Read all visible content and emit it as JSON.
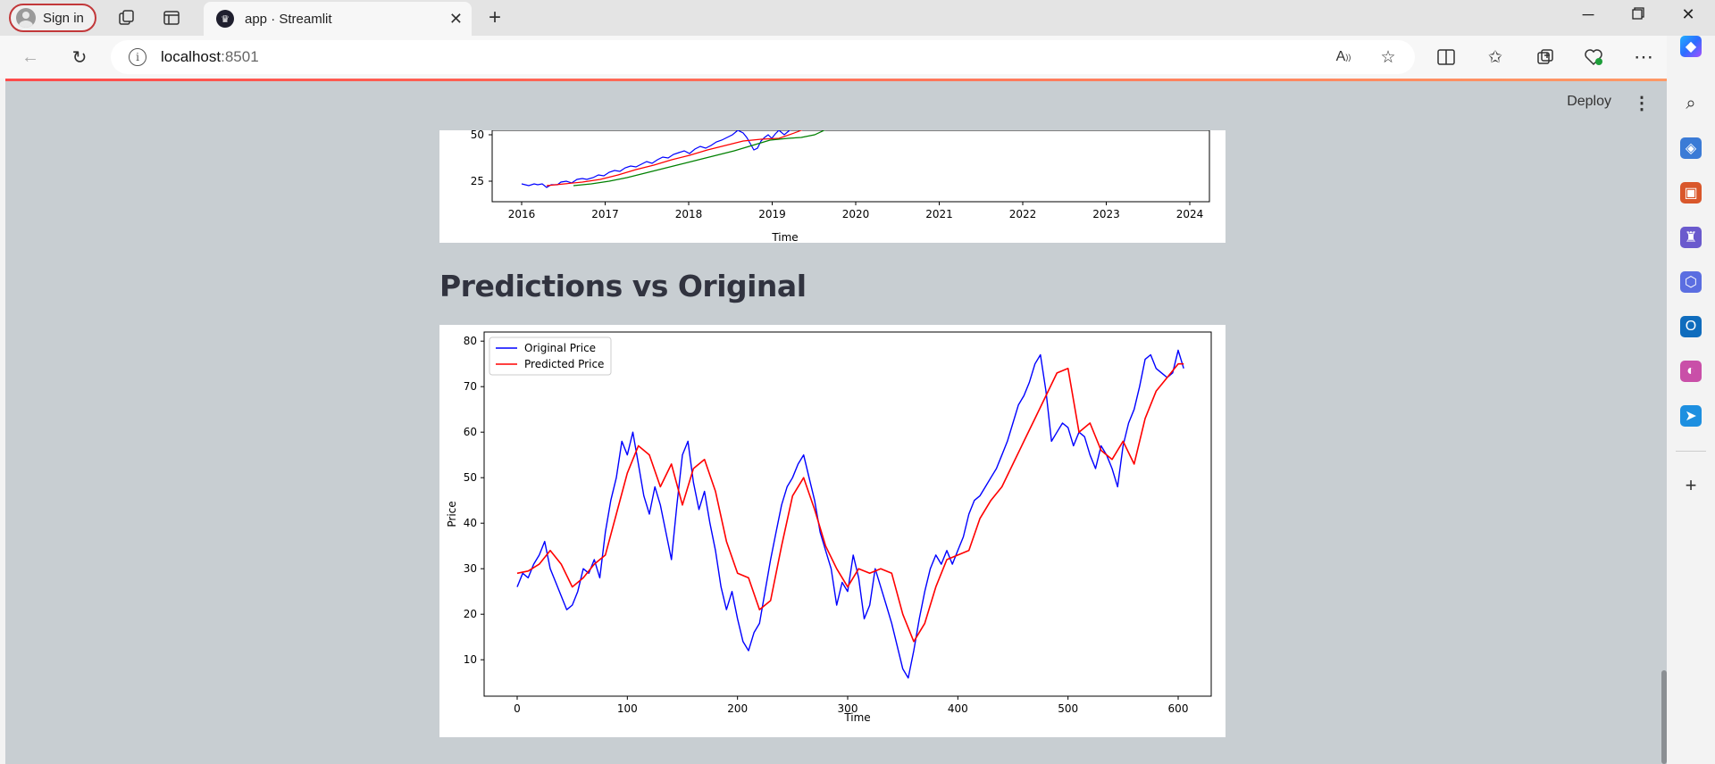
{
  "browser": {
    "signin_label": "Sign in",
    "tab_title": "app · Streamlit",
    "url_host": "localhost",
    "url_port": ":8501"
  },
  "streamlit": {
    "deploy_label": "Deploy",
    "section_heading": "Predictions vs Original"
  },
  "top_chart": {
    "type": "line",
    "x_tick_labels": [
      "2016",
      "2017",
      "2018",
      "2019",
      "2020",
      "2021",
      "2022",
      "2023",
      "2024"
    ],
    "y_tick_labels": [
      "50",
      "25"
    ],
    "xlabel": "Time",
    "series_colors": [
      "#0000ff",
      "#ff0000",
      "#008000"
    ]
  },
  "chart_data": {
    "type": "line",
    "xlabel": "Time",
    "ylabel": "Price",
    "xlim": [
      -30,
      630
    ],
    "ylim": [
      2,
      82
    ],
    "x_ticks": [
      0,
      100,
      200,
      300,
      400,
      500,
      600
    ],
    "y_ticks": [
      10,
      20,
      30,
      40,
      50,
      60,
      70,
      80
    ],
    "legend_position": "top-left",
    "series": [
      {
        "name": "Original Price",
        "color": "#0000ff",
        "x": [
          0,
          5,
          10,
          15,
          20,
          25,
          30,
          35,
          40,
          45,
          50,
          55,
          60,
          65,
          70,
          75,
          80,
          85,
          90,
          95,
          100,
          105,
          110,
          115,
          120,
          125,
          130,
          135,
          140,
          145,
          150,
          155,
          160,
          165,
          170,
          175,
          180,
          185,
          190,
          195,
          200,
          205,
          210,
          215,
          220,
          225,
          230,
          235,
          240,
          245,
          250,
          255,
          260,
          265,
          270,
          275,
          280,
          285,
          290,
          295,
          300,
          305,
          310,
          315,
          320,
          325,
          330,
          335,
          340,
          345,
          350,
          355,
          360,
          365,
          370,
          375,
          380,
          385,
          390,
          395,
          400,
          405,
          410,
          415,
          420,
          425,
          430,
          435,
          440,
          445,
          450,
          455,
          460,
          465,
          470,
          475,
          480,
          485,
          490,
          495,
          500,
          505,
          510,
          515,
          520,
          525,
          530,
          535,
          540,
          545,
          550,
          555,
          560,
          565,
          570,
          575,
          580,
          585,
          590,
          595,
          600,
          605
        ],
        "values": [
          26,
          29,
          28,
          31,
          33,
          36,
          30,
          27,
          24,
          21,
          22,
          25,
          30,
          29,
          32,
          28,
          38,
          45,
          50,
          58,
          55,
          60,
          53,
          46,
          42,
          48,
          44,
          38,
          32,
          44,
          55,
          58,
          49,
          43,
          47,
          40,
          34,
          26,
          21,
          25,
          19,
          14,
          12,
          16,
          18,
          25,
          32,
          38,
          44,
          48,
          50,
          53,
          55,
          50,
          45,
          38,
          34,
          30,
          22,
          27,
          25,
          33,
          28,
          19,
          22,
          30,
          26,
          22,
          18,
          13,
          8,
          6,
          12,
          19,
          25,
          30,
          33,
          31,
          34,
          31,
          34,
          37,
          42,
          45,
          46,
          48,
          50,
          52,
          55,
          58,
          62,
          66,
          68,
          71,
          75,
          77,
          69,
          58,
          60,
          62,
          61,
          57,
          60,
          59,
          55,
          52,
          57,
          55,
          52,
          48,
          57,
          62,
          65,
          70,
          76,
          77,
          74,
          73,
          72,
          73,
          78,
          74
        ]
      },
      {
        "name": "Predicted Price",
        "color": "#ff0000",
        "x": [
          0,
          10,
          20,
          30,
          40,
          50,
          60,
          70,
          80,
          90,
          100,
          110,
          120,
          130,
          140,
          150,
          160,
          170,
          180,
          190,
          200,
          210,
          220,
          230,
          240,
          250,
          260,
          270,
          280,
          290,
          300,
          310,
          320,
          330,
          340,
          350,
          360,
          370,
          380,
          390,
          400,
          410,
          420,
          430,
          440,
          450,
          460,
          470,
          480,
          490,
          500,
          510,
          520,
          530,
          540,
          550,
          560,
          570,
          580,
          590,
          600,
          605
        ],
        "values": [
          29,
          29.5,
          31,
          34,
          31,
          26,
          28,
          31,
          33,
          42,
          51,
          57,
          55,
          48,
          53,
          44,
          52,
          54,
          47,
          36,
          29,
          28,
          21,
          23,
          35,
          46,
          50,
          43,
          35,
          30,
          26,
          30,
          29,
          30,
          29,
          20,
          14,
          18,
          26,
          32,
          33,
          34,
          41,
          45,
          48,
          53,
          58,
          63,
          68,
          73,
          74,
          60,
          62,
          56,
          54,
          58,
          53,
          63,
          69,
          72,
          75,
          75
        ]
      }
    ]
  }
}
